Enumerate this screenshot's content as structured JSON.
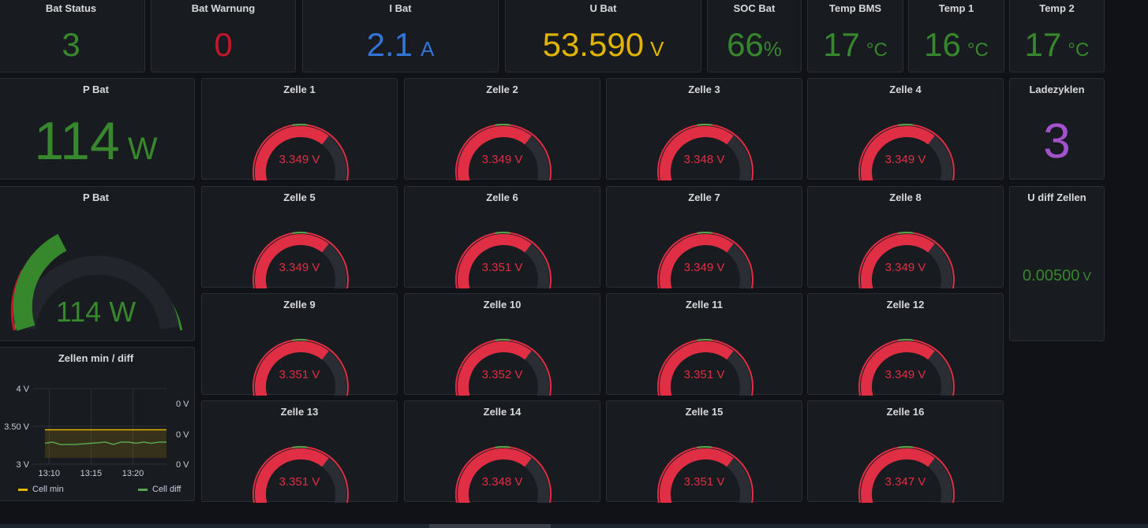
{
  "colors": {
    "green": "#37872d",
    "red": "#c4162a",
    "blue": "#3274d9",
    "yellow": "#e0b400",
    "purple": "#a352cc",
    "gauge_red": "#e02f44",
    "bg": "#111217",
    "panel": "#181b1f"
  },
  "stats": [
    {
      "title": "Bat Status",
      "value": "3",
      "unit": "",
      "color": "green"
    },
    {
      "title": "Bat Warnung",
      "value": "0",
      "unit": "",
      "color": "red"
    },
    {
      "title": "I Bat",
      "value": "2.1",
      "unit": "A",
      "color": "blue"
    },
    {
      "title": "U Bat",
      "value": "53.590",
      "unit": "V",
      "color": "yellow"
    },
    {
      "title": "SOC Bat",
      "value": "66",
      "unit": "%",
      "color": "green"
    },
    {
      "title": "Temp BMS",
      "value": "17",
      "unit": "°C",
      "color": "green"
    },
    {
      "title": "Temp 1",
      "value": "16",
      "unit": "°C",
      "color": "green"
    },
    {
      "title": "Temp 2",
      "value": "17",
      "unit": "°C",
      "color": "green"
    }
  ],
  "pbat_stat": {
    "title": "P Bat",
    "value": "114",
    "unit": "W"
  },
  "pbat_gauge": {
    "title": "P Bat",
    "value": "114 W"
  },
  "ladezyklen": {
    "title": "Ladezyklen",
    "value": "3"
  },
  "udiff": {
    "title": "U diff Zellen",
    "value": "0.00500",
    "unit": "V"
  },
  "cells": [
    {
      "title": "Zelle 1",
      "value": "3.349 V"
    },
    {
      "title": "Zelle 2",
      "value": "3.349 V"
    },
    {
      "title": "Zelle 3",
      "value": "3.348 V"
    },
    {
      "title": "Zelle 4",
      "value": "3.349 V"
    },
    {
      "title": "Zelle 5",
      "value": "3.349 V"
    },
    {
      "title": "Zelle 6",
      "value": "3.351 V"
    },
    {
      "title": "Zelle 7",
      "value": "3.349 V"
    },
    {
      "title": "Zelle 8",
      "value": "3.349 V"
    },
    {
      "title": "Zelle 9",
      "value": "3.351 V"
    },
    {
      "title": "Zelle 10",
      "value": "3.352 V"
    },
    {
      "title": "Zelle 11",
      "value": "3.351 V"
    },
    {
      "title": "Zelle 12",
      "value": "3.349 V"
    },
    {
      "title": "Zelle 13",
      "value": "3.351 V"
    },
    {
      "title": "Zelle 14",
      "value": "3.348 V"
    },
    {
      "title": "Zelle 15",
      "value": "3.351 V"
    },
    {
      "title": "Zelle 16",
      "value": "3.347 V"
    }
  ],
  "chart_data": {
    "type": "line",
    "title": "Zellen min / diff",
    "x_ticks": [
      "13:10",
      "13:15",
      "13:20"
    ],
    "y_left_ticks": [
      "4 V",
      "3.50 V",
      "3 V"
    ],
    "y_right_ticks": [
      "0 V",
      "0 V",
      "0 V"
    ],
    "ylim": [
      3,
      4
    ],
    "grid": true,
    "legend_placement": "bottom",
    "series": [
      {
        "name": "Cell min",
        "axis": "left",
        "color": "#e0b400",
        "x": [
          "13:08",
          "13:10",
          "13:12",
          "13:14",
          "13:16",
          "13:18",
          "13:20",
          "13:22",
          "13:24"
        ],
        "values": [
          3.35,
          3.35,
          3.35,
          3.35,
          3.35,
          3.35,
          3.35,
          3.35,
          3.35
        ]
      },
      {
        "name": "Cell diff",
        "axis": "right",
        "color": "#56a64b",
        "x": [
          "13:08",
          "13:09",
          "13:10",
          "13:12",
          "13:14",
          "13:16",
          "13:17",
          "13:18",
          "13:19",
          "13:20",
          "13:21",
          "13:22",
          "13:23",
          "13:24"
        ],
        "values": [
          0.005,
          0.006,
          0.004,
          0.004,
          0.005,
          0.006,
          0.004,
          0.006,
          0.006,
          0.005,
          0.006,
          0.005,
          0.006,
          0.006
        ]
      }
    ]
  }
}
